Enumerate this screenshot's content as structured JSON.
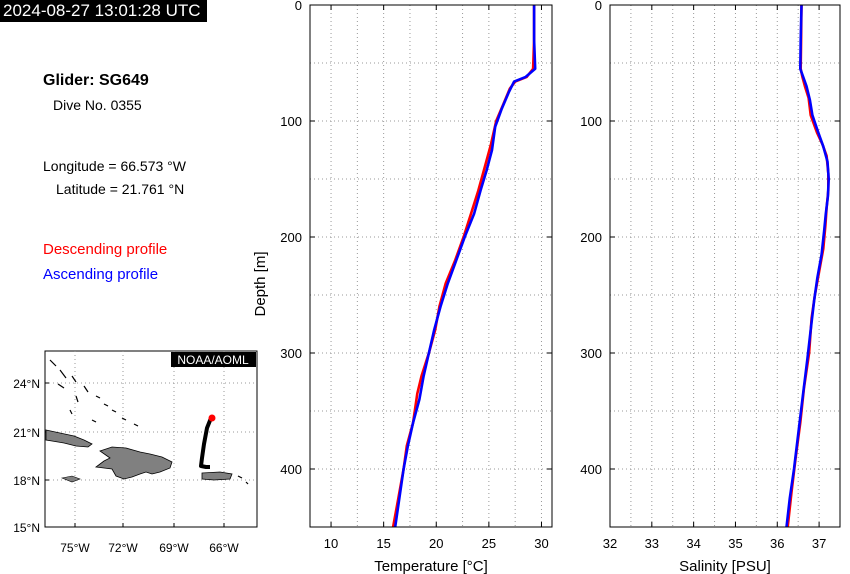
{
  "header": {
    "timestamp": "2024-08-27 13:01:28 UTC",
    "glider": "Glider: SG649",
    "dive": "Dive No. 0355",
    "longitude": "Longitude = 66.573 °W",
    "latitude": "Latitude = 21.761 °N"
  },
  "legend": {
    "descending": {
      "label": "Descending profile",
      "color": "#ff0000"
    },
    "ascending": {
      "label": "Ascending profile",
      "color": "#0000ff"
    }
  },
  "map": {
    "badge": "NOAA/AOML",
    "lon_ticks": [
      "75°W",
      "72°W",
      "69°W",
      "66°W"
    ],
    "lat_ticks": [
      "24°N",
      "21°N",
      "18°N",
      "15°N"
    ],
    "track_color": "#000000",
    "position_color": "#ff0000",
    "land_color": "#808080"
  },
  "chart_data": [
    {
      "type": "line",
      "xlabel": "Temperature [°C]",
      "ylabel": "Depth [m]",
      "xlim": [
        8,
        31
      ],
      "ylim": [
        450,
        0
      ],
      "x_ticks": [
        10,
        15,
        20,
        25,
        30
      ],
      "y_ticks": [
        0,
        100,
        200,
        300,
        400
      ],
      "grid": true,
      "series": [
        {
          "name": "Descending profile",
          "color": "#ff0000",
          "points": [
            [
              29.3,
              0
            ],
            [
              29.3,
              30
            ],
            [
              29.2,
              55
            ],
            [
              28.6,
              62
            ],
            [
              27.5,
              66
            ],
            [
              27.0,
              72
            ],
            [
              26.4,
              85
            ],
            [
              25.7,
              100
            ],
            [
              25.2,
              120
            ],
            [
              24.6,
              140
            ],
            [
              24.0,
              160
            ],
            [
              23.3,
              180
            ],
            [
              22.6,
              200
            ],
            [
              21.8,
              220
            ],
            [
              20.9,
              240
            ],
            [
              20.3,
              260
            ],
            [
              19.9,
              280
            ],
            [
              19.3,
              300
            ],
            [
              18.6,
              320
            ],
            [
              18.2,
              335
            ],
            [
              17.8,
              360
            ],
            [
              17.2,
              380
            ],
            [
              16.9,
              400
            ],
            [
              16.4,
              425
            ],
            [
              15.9,
              450
            ]
          ]
        },
        {
          "name": "Ascending profile",
          "color": "#0000ff",
          "points": [
            [
              29.3,
              0
            ],
            [
              29.3,
              30
            ],
            [
              29.4,
              55
            ],
            [
              28.5,
              62
            ],
            [
              27.4,
              66
            ],
            [
              26.9,
              75
            ],
            [
              26.2,
              90
            ],
            [
              25.6,
              105
            ],
            [
              25.3,
              125
            ],
            [
              24.8,
              142
            ],
            [
              24.2,
              160
            ],
            [
              23.6,
              180
            ],
            [
              22.7,
              200
            ],
            [
              21.9,
              220
            ],
            [
              21.1,
              240
            ],
            [
              20.4,
              260
            ],
            [
              19.8,
              280
            ],
            [
              19.3,
              300
            ],
            [
              18.8,
              320
            ],
            [
              18.4,
              340
            ],
            [
              17.8,
              360
            ],
            [
              17.3,
              380
            ],
            [
              16.9,
              400
            ],
            [
              16.5,
              425
            ],
            [
              16.1,
              450
            ]
          ]
        }
      ]
    },
    {
      "type": "line",
      "xlabel": "Salinity [PSU]",
      "ylabel": "",
      "xlim": [
        32,
        37.5
      ],
      "ylim": [
        450,
        0
      ],
      "x_ticks": [
        32,
        33,
        34,
        35,
        36,
        37
      ],
      "y_ticks": [
        0,
        100,
        200,
        300,
        400
      ],
      "grid": true,
      "series": [
        {
          "name": "Descending profile",
          "color": "#ff0000",
          "points": [
            [
              36.58,
              0
            ],
            [
              36.57,
              30
            ],
            [
              36.56,
              55
            ],
            [
              36.6,
              62
            ],
            [
              36.66,
              70
            ],
            [
              36.75,
              80
            ],
            [
              36.8,
              95
            ],
            [
              36.95,
              110
            ],
            [
              37.08,
              120
            ],
            [
              37.18,
              130
            ],
            [
              37.22,
              145
            ],
            [
              37.22,
              160
            ],
            [
              37.18,
              175
            ],
            [
              37.15,
              190
            ],
            [
              37.1,
              210
            ],
            [
              37.0,
              230
            ],
            [
              36.9,
              250
            ],
            [
              36.82,
              270
            ],
            [
              36.76,
              300
            ],
            [
              36.64,
              330
            ],
            [
              36.55,
              360
            ],
            [
              36.44,
              390
            ],
            [
              36.34,
              420
            ],
            [
              36.25,
              450
            ]
          ]
        },
        {
          "name": "Ascending profile",
          "color": "#0000ff",
          "points": [
            [
              36.58,
              0
            ],
            [
              36.56,
              30
            ],
            [
              36.55,
              55
            ],
            [
              36.62,
              62
            ],
            [
              36.7,
              70
            ],
            [
              36.78,
              82
            ],
            [
              36.84,
              95
            ],
            [
              36.98,
              110
            ],
            [
              37.1,
              122
            ],
            [
              37.2,
              135
            ],
            [
              37.23,
              150
            ],
            [
              37.21,
              165
            ],
            [
              37.16,
              180
            ],
            [
              37.12,
              195
            ],
            [
              37.06,
              215
            ],
            [
              36.96,
              235
            ],
            [
              36.88,
              255
            ],
            [
              36.8,
              280
            ],
            [
              36.72,
              305
            ],
            [
              36.6,
              340
            ],
            [
              36.5,
              370
            ],
            [
              36.4,
              400
            ],
            [
              36.3,
              425
            ],
            [
              36.22,
              450
            ]
          ]
        }
      ]
    }
  ]
}
